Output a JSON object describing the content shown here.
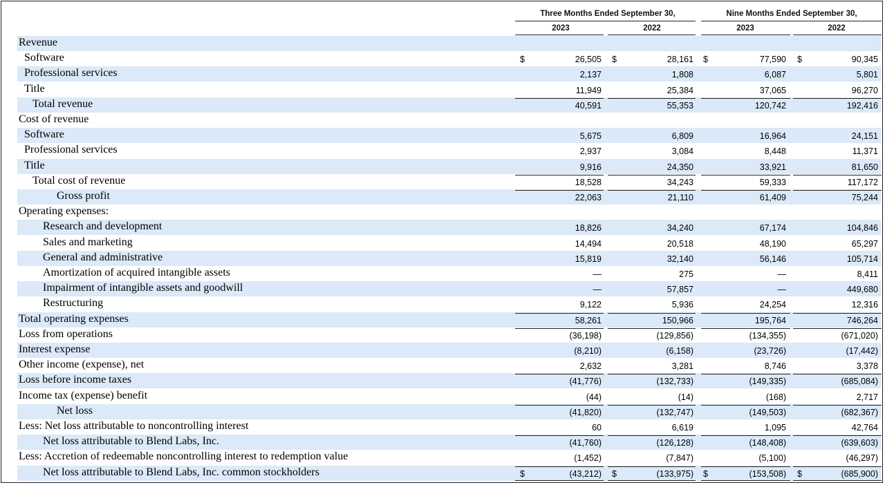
{
  "header": {
    "period_three": "Three Months Ended September 30,",
    "period_nine": "Nine Months Ended September 30,",
    "years": [
      "2023",
      "2022",
      "2023",
      "2022"
    ]
  },
  "currency_symbol": "$",
  "rows": [
    {
      "label": "Revenue",
      "indent": 0,
      "values": [
        "",
        "",
        "",
        ""
      ]
    },
    {
      "label": "Software",
      "indent": 1,
      "values": [
        "26,505",
        "28,161",
        "77,590",
        "90,345"
      ],
      "dollar": true
    },
    {
      "label": "Professional services",
      "indent": 1,
      "values": [
        "2,137",
        "1,808",
        "6,087",
        "5,801"
      ]
    },
    {
      "label": "Title",
      "indent": 1,
      "values": [
        "11,949",
        "25,384",
        "37,065",
        "96,270"
      ]
    },
    {
      "label": "Total revenue",
      "indent": 2,
      "values": [
        "40,591",
        "55,353",
        "120,742",
        "192,416"
      ],
      "top_rule": true
    },
    {
      "label": "Cost of revenue",
      "indent": 0,
      "values": [
        "",
        "",
        "",
        ""
      ]
    },
    {
      "label": "Software",
      "indent": 1,
      "values": [
        "5,675",
        "6,809",
        "16,964",
        "24,151"
      ]
    },
    {
      "label": "Professional services",
      "indent": 1,
      "values": [
        "2,937",
        "3,084",
        "8,448",
        "11,371"
      ]
    },
    {
      "label": "Title",
      "indent": 1,
      "values": [
        "9,916",
        "24,350",
        "33,921",
        "81,650"
      ]
    },
    {
      "label": "Total cost of revenue",
      "indent": 2,
      "values": [
        "18,528",
        "34,243",
        "59,333",
        "117,172"
      ],
      "top_rule": true
    },
    {
      "label": "Gross profit",
      "indent": 4,
      "values": [
        "22,063",
        "21,110",
        "61,409",
        "75,244"
      ],
      "top_rule": true
    },
    {
      "label": "Operating expenses:",
      "indent": 0,
      "values": [
        "",
        "",
        "",
        ""
      ]
    },
    {
      "label": "Research and development",
      "indent": 3,
      "values": [
        "18,826",
        "34,240",
        "67,174",
        "104,846"
      ]
    },
    {
      "label": "Sales and marketing",
      "indent": 3,
      "values": [
        "14,494",
        "20,518",
        "48,190",
        "65,297"
      ]
    },
    {
      "label": "General and administrative",
      "indent": 3,
      "values": [
        "15,819",
        "32,140",
        "56,146",
        "105,714"
      ]
    },
    {
      "label": "Amortization of acquired intangible assets",
      "indent": 3,
      "values": [
        "—",
        "275",
        "—",
        "8,411"
      ]
    },
    {
      "label": "Impairment of intangible assets and goodwill",
      "indent": 3,
      "values": [
        "—",
        "57,857",
        "—",
        "449,680"
      ]
    },
    {
      "label": "Restructuring",
      "indent": 3,
      "values": [
        "9,122",
        "5,936",
        "24,254",
        "12,316"
      ]
    },
    {
      "label": "Total operating expenses",
      "indent": 0,
      "values": [
        "58,261",
        "150,966",
        "195,764",
        "746,264"
      ],
      "top_rule": true
    },
    {
      "label": "Loss from operations",
      "indent": 0,
      "values": [
        "(36,198)",
        "(129,856)",
        "(134,355)",
        "(671,020)"
      ],
      "top_rule": true
    },
    {
      "label": "Interest expense",
      "indent": 0,
      "values": [
        "(8,210)",
        "(6,158)",
        "(23,726)",
        "(17,442)"
      ]
    },
    {
      "label": "Other income (expense), net",
      "indent": 0,
      "values": [
        "2,632",
        "3,281",
        "8,746",
        "3,378"
      ]
    },
    {
      "label": "Loss before income taxes",
      "indent": 0,
      "values": [
        "(41,776)",
        "(132,733)",
        "(149,335)",
        "(685,084)"
      ],
      "top_rule": true
    },
    {
      "label": "Income tax (expense) benefit",
      "indent": 0,
      "values": [
        "(44)",
        "(14)",
        "(168)",
        "2,717"
      ]
    },
    {
      "label": "Net loss",
      "indent": 4,
      "values": [
        "(41,820)",
        "(132,747)",
        "(149,503)",
        "(682,367)"
      ],
      "top_rule": true
    },
    {
      "label": "Less: Net loss attributable to noncontrolling interest",
      "indent": 0,
      "values": [
        "60",
        "6,619",
        "1,095",
        "42,764"
      ]
    },
    {
      "label": "Net loss attributable to Blend Labs, Inc.",
      "indent": 3,
      "values": [
        "(41,760)",
        "(126,128)",
        "(148,408)",
        "(639,603)"
      ],
      "top_rule": true
    },
    {
      "label": "Less: Accretion of redeemable noncontrolling interest to redemption value",
      "indent": 0,
      "values": [
        "(1,452)",
        "(7,847)",
        "(5,100)",
        "(46,297)"
      ]
    },
    {
      "label": "Net loss attributable to Blend Labs, Inc. common stockholders",
      "indent": 3,
      "values": [
        "(43,212)",
        "(133,975)",
        "(153,508)",
        "(685,900)"
      ],
      "dollar": true,
      "top_rule": true,
      "double_rule": true
    }
  ]
}
